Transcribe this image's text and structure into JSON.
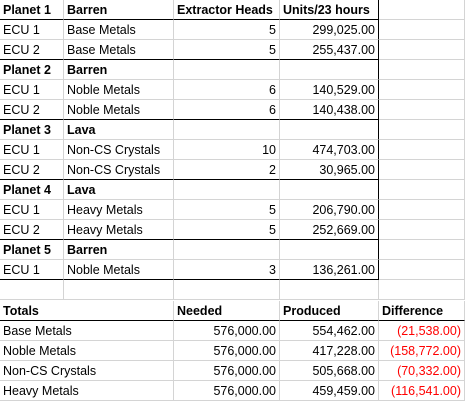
{
  "upper_headers": {
    "col_a": "Planet 1",
    "col_b": "Barren",
    "col_c": "Extractor Heads",
    "col_d": "Units/23 hours"
  },
  "planets": [
    {
      "name": "Planet 1",
      "type": "Barren",
      "rows": [
        {
          "ecu": "ECU 1",
          "resource": "Base Metals",
          "heads": "5",
          "units": "299,025.00"
        },
        {
          "ecu": "ECU 2",
          "resource": "Base Metals",
          "heads": "5",
          "units": "255,437.00"
        }
      ]
    },
    {
      "name": "Planet 2",
      "type": "Barren",
      "rows": [
        {
          "ecu": "ECU 1",
          "resource": "Noble Metals",
          "heads": "6",
          "units": "140,529.00"
        },
        {
          "ecu": "ECU 2",
          "resource": "Noble Metals",
          "heads": "6",
          "units": "140,438.00"
        }
      ]
    },
    {
      "name": "Planet 3",
      "type": "Lava",
      "rows": [
        {
          "ecu": "ECU 1",
          "resource": "Non-CS Crystals",
          "heads": "10",
          "units": "474,703.00"
        },
        {
          "ecu": "ECU 2",
          "resource": "Non-CS Crystals",
          "heads": "2",
          "units": "30,965.00"
        }
      ]
    },
    {
      "name": "Planet 4",
      "type": "Lava",
      "rows": [
        {
          "ecu": "ECU 1",
          "resource": "Heavy Metals",
          "heads": "5",
          "units": "206,790.00"
        },
        {
          "ecu": "ECU 2",
          "resource": "Heavy Metals",
          "heads": "5",
          "units": "252,669.00"
        }
      ]
    },
    {
      "name": "Planet 5",
      "type": "Barren",
      "rows": [
        {
          "ecu": "ECU 1",
          "resource": "Noble Metals",
          "heads": "3",
          "units": "136,261.00"
        }
      ]
    }
  ],
  "totals": {
    "headers": {
      "label": "Totals",
      "needed": "Needed",
      "produced": "Produced",
      "difference": "Difference"
    },
    "rows": [
      {
        "label": "Base Metals",
        "needed": "576,000.00",
        "produced": "554,462.00",
        "difference": "(21,538.00)"
      },
      {
        "label": "Noble Metals",
        "needed": "576,000.00",
        "produced": "417,228.00",
        "difference": "(158,772.00)"
      },
      {
        "label": "Non-CS Crystals",
        "needed": "576,000.00",
        "produced": "505,668.00",
        "difference": "(70,332.00)"
      },
      {
        "label": "Heavy Metals",
        "needed": "576,000.00",
        "produced": "459,459.00",
        "difference": "(116,541.00)"
      }
    ]
  },
  "colors": {
    "negative": "#ff0000",
    "gridline": "#d4d4d4",
    "border": "#000000"
  }
}
